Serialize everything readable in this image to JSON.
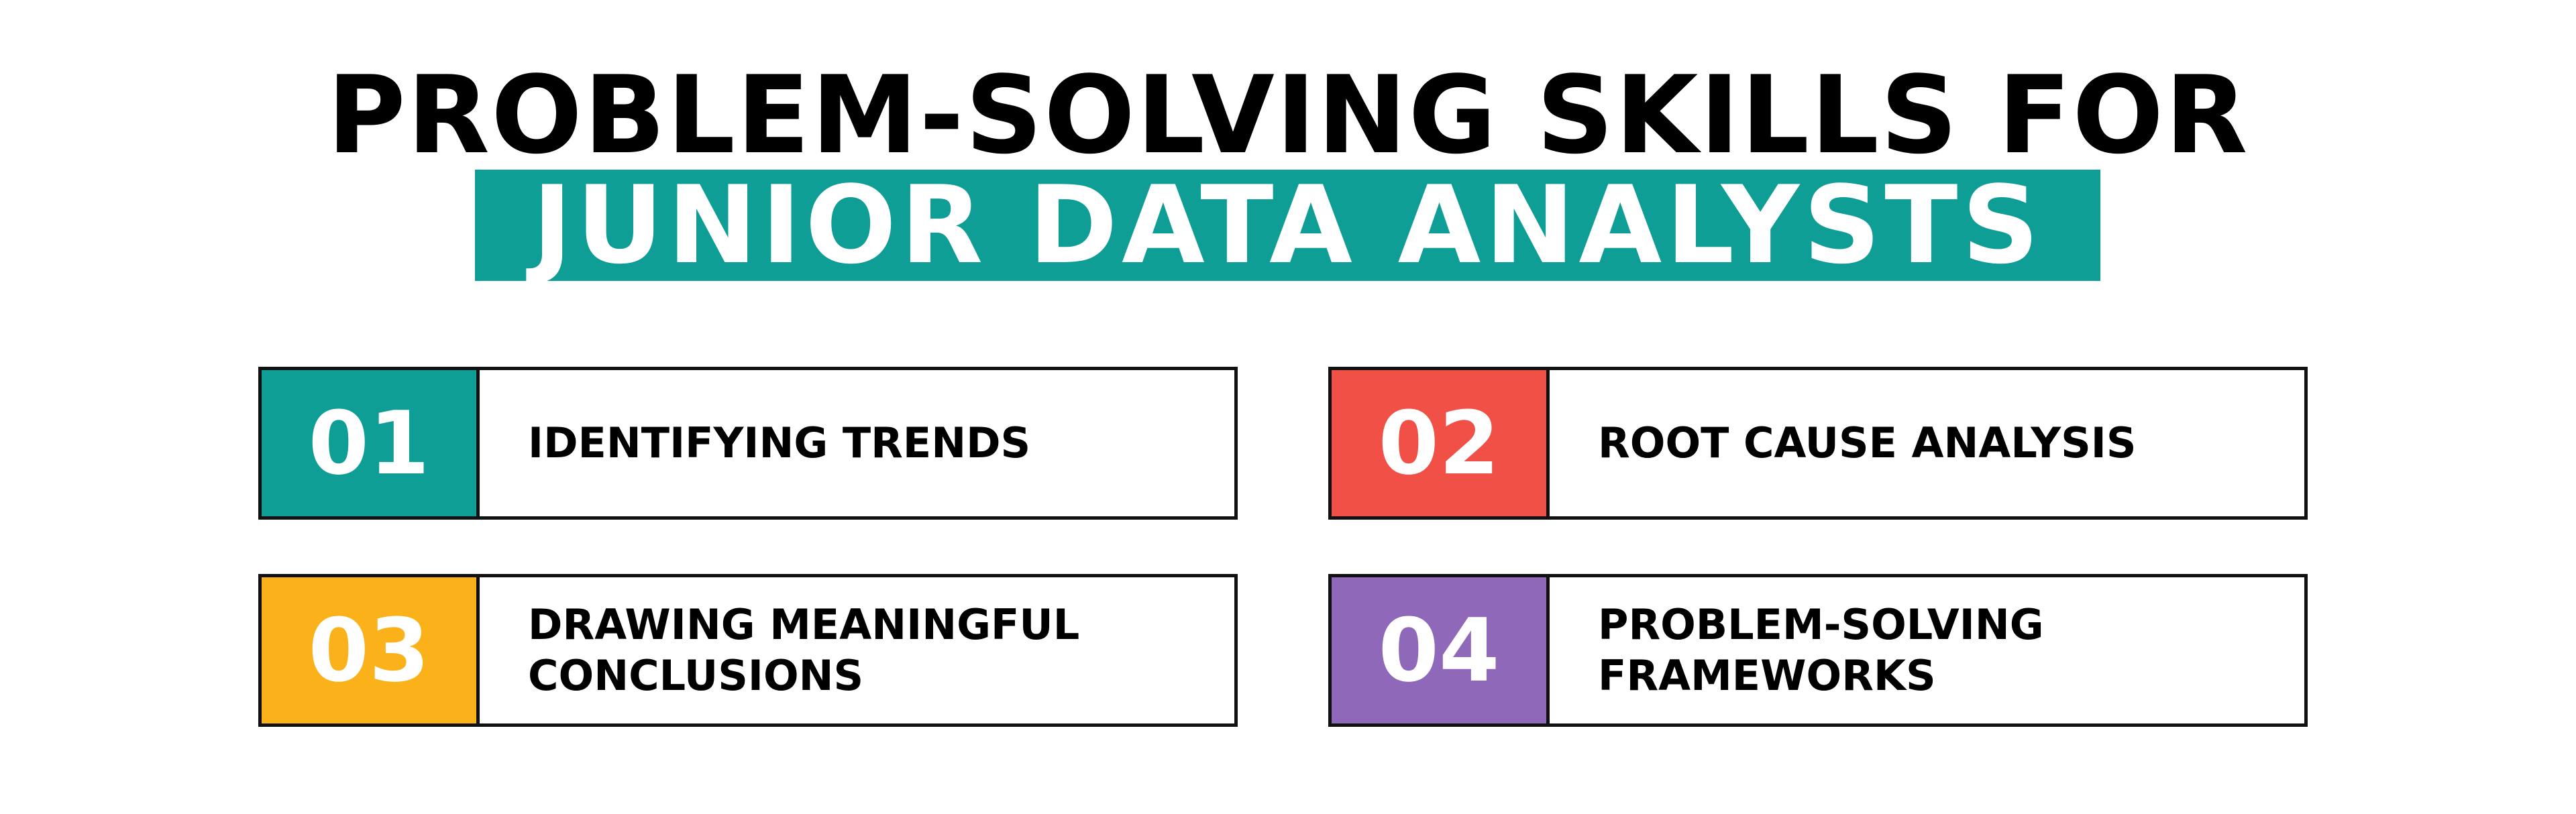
{
  "title": {
    "line1": "PROBLEM-SOLVING SKILLS FOR",
    "line2": "JUNIOR DATA ANALYSTS",
    "band_color": "#0e9e95"
  },
  "skills": [
    {
      "number": "01",
      "label": "IDENTIFYING TRENDS",
      "color": "#0e9e95"
    },
    {
      "number": "02",
      "label": "ROOT CAUSE ANALYSIS",
      "color": "#f15046"
    },
    {
      "number": "03",
      "label": "DRAWING MEANINGFUL\nCONCLUSIONS",
      "color": "#fbb11a"
    },
    {
      "number": "04",
      "label": "PROBLEM-SOLVING\nFRAMEWORKS",
      "color": "#8f68b9"
    }
  ]
}
